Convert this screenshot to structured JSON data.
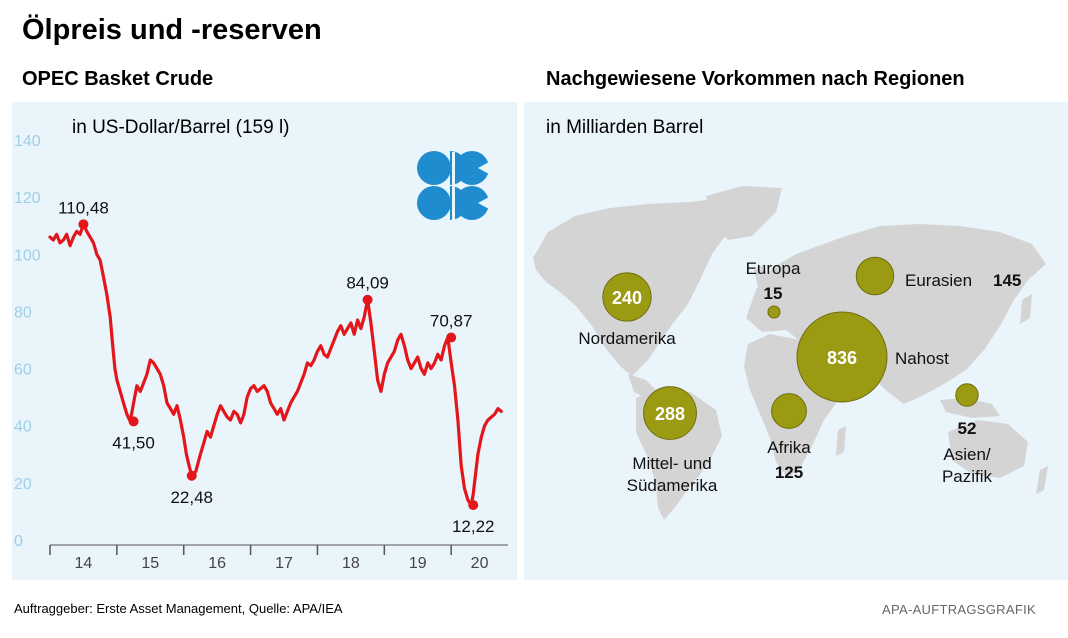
{
  "title": "Ölpreis und -reserven",
  "footer": {
    "source": "Auftraggeber: Erste Asset Management, Quelle: APA/IEA",
    "credit": "APA-AUFTRAGSGRAFIK"
  },
  "colors": {
    "panel_bg": "#eaf4fb",
    "line": "#e3161b",
    "bubble": "#9b9a13",
    "land": "#d4d4d4",
    "opec_blue": "#1f8ccf",
    "axis_ticks": "#9fcfe6"
  },
  "chart_data": [
    {
      "type": "line",
      "title": "OPEC Basket Crude",
      "ylabel": "in US-Dollar/Barrel (159 l)",
      "ylim": [
        0,
        140
      ],
      "yticks": [
        "0",
        "20",
        "40",
        "60",
        "80",
        "100",
        "120",
        "140"
      ],
      "categories": [
        "14",
        "15",
        "16",
        "17",
        "18",
        "19",
        "20"
      ],
      "xlim": [
        2014.0,
        2020.85
      ],
      "grid": false,
      "logo_icon": "opec-logo-icon",
      "series": [
        {
          "name": "OPEC Basket Crude",
          "x": [
            2014.0,
            2014.05,
            2014.1,
            2014.15,
            2014.2,
            2014.25,
            2014.3,
            2014.35,
            2014.4,
            2014.45,
            2014.5,
            2014.55,
            2014.6,
            2014.65,
            2014.7,
            2014.75,
            2014.8,
            2014.85,
            2014.9,
            2014.93,
            2014.97,
            2015.0,
            2015.05,
            2015.1,
            2015.15,
            2015.2,
            2015.25,
            2015.3,
            2015.35,
            2015.4,
            2015.45,
            2015.5,
            2015.55,
            2015.6,
            2015.65,
            2015.7,
            2015.75,
            2015.8,
            2015.85,
            2015.9,
            2015.95,
            2016.0,
            2016.04,
            2016.08,
            2016.12,
            2016.18,
            2016.25,
            2016.3,
            2016.35,
            2016.4,
            2016.45,
            2016.5,
            2016.55,
            2016.6,
            2016.65,
            2016.7,
            2016.75,
            2016.8,
            2016.85,
            2016.9,
            2016.95,
            2017.0,
            2017.05,
            2017.1,
            2017.15,
            2017.2,
            2017.25,
            2017.3,
            2017.35,
            2017.4,
            2017.45,
            2017.5,
            2017.55,
            2017.6,
            2017.65,
            2017.7,
            2017.75,
            2017.8,
            2017.85,
            2017.9,
            2017.95,
            2018.0,
            2018.05,
            2018.1,
            2018.15,
            2018.2,
            2018.25,
            2018.3,
            2018.35,
            2018.4,
            2018.45,
            2018.5,
            2018.55,
            2018.6,
            2018.65,
            2018.7,
            2018.75,
            2018.8,
            2018.85,
            2018.9,
            2018.95,
            2019.0,
            2019.05,
            2019.1,
            2019.15,
            2019.2,
            2019.25,
            2019.3,
            2019.35,
            2019.4,
            2019.45,
            2019.5,
            2019.55,
            2019.6,
            2019.65,
            2019.7,
            2019.75,
            2019.8,
            2019.85,
            2019.9,
            2019.95,
            2020.0,
            2020.05,
            2020.1,
            2020.15,
            2020.2,
            2020.25,
            2020.3,
            2020.33,
            2020.36,
            2020.4,
            2020.45,
            2020.5,
            2020.55,
            2020.6,
            2020.65,
            2020.7,
            2020.75
          ],
          "y": [
            106,
            105,
            107,
            104,
            105,
            107,
            103,
            106,
            108,
            107,
            110.48,
            108,
            106,
            104,
            100,
            98,
            92,
            86,
            78,
            70,
            60,
            56,
            52,
            48,
            44,
            41.5,
            48,
            54,
            52,
            55,
            58,
            63,
            62,
            60,
            58,
            54,
            48,
            46,
            44,
            47,
            42,
            36,
            30,
            26,
            22.48,
            24,
            30,
            34,
            38,
            36,
            40,
            44,
            47,
            45,
            43,
            42,
            45,
            44,
            41,
            44,
            50,
            53,
            54,
            52,
            53,
            54,
            52,
            48,
            46,
            44,
            46,
            42,
            45,
            48,
            50,
            52,
            55,
            58,
            62,
            61,
            63,
            66,
            68,
            65,
            64,
            67,
            70,
            73,
            75,
            72,
            74,
            76,
            72,
            77,
            74,
            78,
            84.09,
            76,
            66,
            56,
            52,
            58,
            62,
            64,
            66,
            70,
            72,
            68,
            63,
            60,
            62,
            64,
            60,
            58,
            62,
            60,
            62,
            65,
            63,
            68,
            70.87,
            62,
            54,
            42,
            26,
            18,
            14,
            12.22,
            16,
            22,
            30,
            36,
            40,
            42,
            43,
            44,
            46,
            45
          ]
        }
      ],
      "annotations": [
        {
          "x": 2014.5,
          "y": 110.48,
          "label": "110,48",
          "pos": "above"
        },
        {
          "x": 2015.25,
          "y": 41.5,
          "label": "41,50",
          "pos": "below"
        },
        {
          "x": 2016.12,
          "y": 22.48,
          "label": "22,48",
          "pos": "below"
        },
        {
          "x": 2018.75,
          "y": 84.09,
          "label": "84,09",
          "pos": "above"
        },
        {
          "x": 2020.0,
          "y": 70.87,
          "label": "70,87",
          "pos": "above"
        },
        {
          "x": 2020.33,
          "y": 12.22,
          "label": "12,22",
          "pos": "below"
        }
      ]
    },
    {
      "type": "bubble-map",
      "title": "Nachgewiesene Vorkommen nach Regionen",
      "unit": "in Milliarden Barrel",
      "regions": [
        {
          "name": "Nordamerika",
          "name_lines": [
            "Nordamerika"
          ],
          "value": 240,
          "value_text": "240",
          "value_in_bubble": true
        },
        {
          "name": "Mittel- und Südamerika",
          "name_lines": [
            "Mittel- und",
            "Südamerika"
          ],
          "value": 288,
          "value_text": "288",
          "value_in_bubble": true
        },
        {
          "name": "Europa",
          "name_lines": [
            "Europa"
          ],
          "value": 15,
          "value_text": "15",
          "value_in_bubble": false
        },
        {
          "name": "Eurasien",
          "name_lines": [
            "Eurasien"
          ],
          "value": 145,
          "value_text": "145",
          "value_in_bubble": false
        },
        {
          "name": "Nahost",
          "name_lines": [
            "Nahost"
          ],
          "value": 836,
          "value_text": "836",
          "value_in_bubble": true
        },
        {
          "name": "Afrika",
          "name_lines": [
            "Afrika"
          ],
          "value": 125,
          "value_text": "125",
          "value_in_bubble": false
        },
        {
          "name": "Asien/Pazifik",
          "name_lines": [
            "Asien/",
            "Pazifik"
          ],
          "value": 52,
          "value_text": "52",
          "value_in_bubble": false
        }
      ]
    }
  ]
}
